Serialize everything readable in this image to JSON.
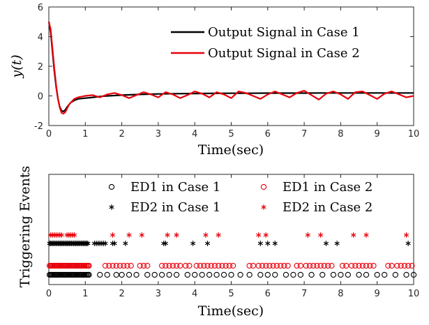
{
  "chart_data": [
    {
      "type": "line",
      "ylabel": "y(t)",
      "xlabel": "Time(sec)",
      "xlim": [
        0,
        10
      ],
      "ylim": [
        -2,
        6
      ],
      "xticks": [
        0,
        1,
        2,
        3,
        4,
        5,
        6,
        7,
        8,
        9,
        10
      ],
      "yticks": [
        -2,
        0,
        2,
        4,
        6
      ],
      "legend_position": "top-right",
      "series": [
        {
          "name": "Output Signal in Case 1",
          "color": "#000000",
          "x": [
            0,
            0.05,
            0.1,
            0.15,
            0.2,
            0.25,
            0.3,
            0.35,
            0.4,
            0.45,
            0.5,
            0.6,
            0.7,
            0.8,
            1.0,
            1.2,
            1.5,
            2.0,
            2.5,
            3.0,
            3.5,
            4.0,
            4.5,
            5.0,
            5.5,
            6.0,
            6.5,
            7.0,
            7.5,
            8.0,
            8.5,
            9.0,
            9.5,
            10.0
          ],
          "y": [
            5.0,
            4.3,
            3.0,
            1.7,
            0.6,
            -0.2,
            -0.75,
            -1.0,
            -1.05,
            -0.95,
            -0.75,
            -0.45,
            -0.3,
            -0.2,
            -0.15,
            -0.1,
            -0.02,
            0.05,
            0.1,
            0.13,
            0.15,
            0.16,
            0.17,
            0.18,
            0.18,
            0.19,
            0.19,
            0.19,
            0.2,
            0.2,
            0.2,
            0.2,
            0.2,
            0.2
          ]
        },
        {
          "name": "Output Signal in Case 2",
          "color": "#e8000b",
          "x": [
            0,
            0.05,
            0.1,
            0.15,
            0.2,
            0.25,
            0.3,
            0.35,
            0.4,
            0.45,
            0.5,
            0.55,
            0.6,
            0.7,
            0.8,
            0.9,
            1.0,
            1.2,
            1.4,
            1.6,
            1.8,
            2.0,
            2.2,
            2.4,
            2.6,
            2.8,
            3.0,
            3.2,
            3.4,
            3.6,
            3.8,
            4.0,
            4.2,
            4.4,
            4.6,
            4.8,
            5.0,
            5.2,
            5.4,
            5.6,
            5.8,
            6.0,
            6.2,
            6.4,
            6.6,
            6.8,
            7.0,
            7.2,
            7.4,
            7.6,
            7.8,
            8.0,
            8.2,
            8.4,
            8.6,
            8.8,
            9.0,
            9.2,
            9.4,
            9.6,
            9.8,
            10.0
          ],
          "y": [
            5.0,
            4.5,
            3.2,
            1.9,
            0.7,
            -0.2,
            -0.8,
            -1.15,
            -1.2,
            -1.1,
            -0.85,
            -0.6,
            -0.45,
            -0.2,
            -0.1,
            -0.05,
            0.0,
            0.05,
            -0.1,
            0.1,
            0.2,
            0.05,
            -0.15,
            0.05,
            0.25,
            0.1,
            -0.1,
            0.25,
            0.1,
            -0.15,
            0.05,
            0.3,
            0.15,
            -0.1,
            0.25,
            0.1,
            -0.15,
            0.3,
            0.2,
            0.0,
            -0.2,
            0.1,
            0.3,
            0.1,
            -0.1,
            0.2,
            0.35,
            0.05,
            -0.25,
            0.15,
            0.3,
            0.1,
            -0.2,
            0.25,
            0.3,
            0.05,
            -0.2,
            0.15,
            0.3,
            0.1,
            -0.1,
            0.0
          ]
        }
      ]
    },
    {
      "type": "scatter",
      "ylabel": "Triggering Events",
      "xlabel": "Time(sec)",
      "xlim": [
        0,
        10
      ],
      "xticks": [
        0,
        1,
        2,
        3,
        4,
        5,
        6,
        7,
        8,
        9,
        10
      ],
      "legend_position": "top-right",
      "legend_columns": 2,
      "series": [
        {
          "name": "ED1 in Case 1",
          "marker": "circle",
          "color": "#000000",
          "level": 1,
          "x": [
            0.02,
            0.05,
            0.08,
            0.11,
            0.14,
            0.17,
            0.2,
            0.23,
            0.26,
            0.29,
            0.32,
            0.35,
            0.38,
            0.41,
            0.44,
            0.47,
            0.5,
            0.53,
            0.56,
            0.59,
            0.62,
            0.65,
            0.68,
            0.71,
            0.74,
            0.77,
            0.8,
            0.83,
            0.86,
            0.89,
            0.92,
            0.95,
            0.98,
            1.01,
            1.04,
            1.07,
            1.1,
            1.4,
            1.6,
            1.85,
            2.0,
            2.2,
            2.4,
            2.7,
            2.9,
            3.1,
            3.3,
            3.5,
            3.8,
            4.0,
            4.2,
            4.4,
            4.6,
            4.8,
            5.0,
            5.25,
            5.5,
            5.8,
            6.0,
            6.2,
            6.5,
            6.7,
            6.9,
            7.2,
            7.5,
            7.8,
            8.0,
            8.2,
            8.5,
            8.7,
            9.0,
            9.2,
            9.5,
            9.8,
            10.0
          ]
        },
        {
          "name": "ED1 in Case 2",
          "marker": "circle",
          "color": "#e8000b",
          "level": 1,
          "x": [
            0.02,
            0.05,
            0.08,
            0.11,
            0.14,
            0.17,
            0.2,
            0.23,
            0.26,
            0.29,
            0.32,
            0.35,
            0.38,
            0.41,
            0.44,
            0.47,
            0.5,
            0.53,
            0.56,
            0.59,
            0.62,
            0.65,
            0.68,
            0.71,
            0.74,
            0.77,
            0.8,
            0.83,
            0.86,
            0.89,
            0.92,
            0.95,
            0.98,
            1.01,
            1.04,
            1.07,
            1.1,
            1.55,
            1.65,
            1.75,
            1.85,
            1.95,
            2.05,
            2.15,
            2.25,
            2.5,
            2.6,
            2.7,
            3.1,
            3.2,
            3.3,
            3.4,
            3.5,
            3.6,
            3.75,
            3.85,
            4.05,
            4.15,
            4.25,
            4.35,
            4.45,
            4.55,
            4.65,
            4.75,
            4.85,
            4.95,
            5.05,
            5.5,
            5.6,
            5.75,
            5.85,
            5.95,
            6.05,
            6.15,
            6.25,
            6.35,
            6.45,
            6.55,
            6.8,
            6.9,
            7.05,
            7.15,
            7.25,
            7.35,
            7.45,
            7.55,
            7.65,
            7.75,
            8.05,
            8.15,
            8.3,
            8.4,
            8.5,
            8.6,
            8.7,
            8.8,
            8.9,
            9.3,
            9.4,
            9.55,
            9.65,
            9.75,
            9.85,
            9.95
          ]
        },
        {
          "name": "ED2 in Case 1",
          "marker": "asterisk",
          "color": "#000000",
          "level": 2,
          "x": [
            0.02,
            0.05,
            0.08,
            0.11,
            0.14,
            0.17,
            0.2,
            0.23,
            0.26,
            0.29,
            0.32,
            0.35,
            0.38,
            0.41,
            0.44,
            0.47,
            0.5,
            0.53,
            0.56,
            0.59,
            0.62,
            0.65,
            0.68,
            0.71,
            0.74,
            0.77,
            0.8,
            0.83,
            0.86,
            0.89,
            0.92,
            0.95,
            0.98,
            1.01,
            1.04,
            1.07,
            1.25,
            1.3,
            1.35,
            1.4,
            1.45,
            1.5,
            1.55,
            1.75,
            1.8,
            2.1,
            3.15,
            3.2,
            3.95,
            4.35,
            5.8,
            6.0,
            6.2,
            7.6,
            7.9,
            9.85
          ]
        },
        {
          "name": "ED2 in Case 2",
          "marker": "asterisk",
          "color": "#e8000b",
          "level": 3,
          "x": [
            0.05,
            0.1,
            0.15,
            0.2,
            0.25,
            0.3,
            0.35,
            0.5,
            0.55,
            0.6,
            0.65,
            0.7,
            1.75,
            2.2,
            2.55,
            3.25,
            3.5,
            4.3,
            4.65,
            5.75,
            5.95,
            7.1,
            7.45,
            8.35,
            8.7,
            9.8
          ]
        }
      ]
    }
  ]
}
